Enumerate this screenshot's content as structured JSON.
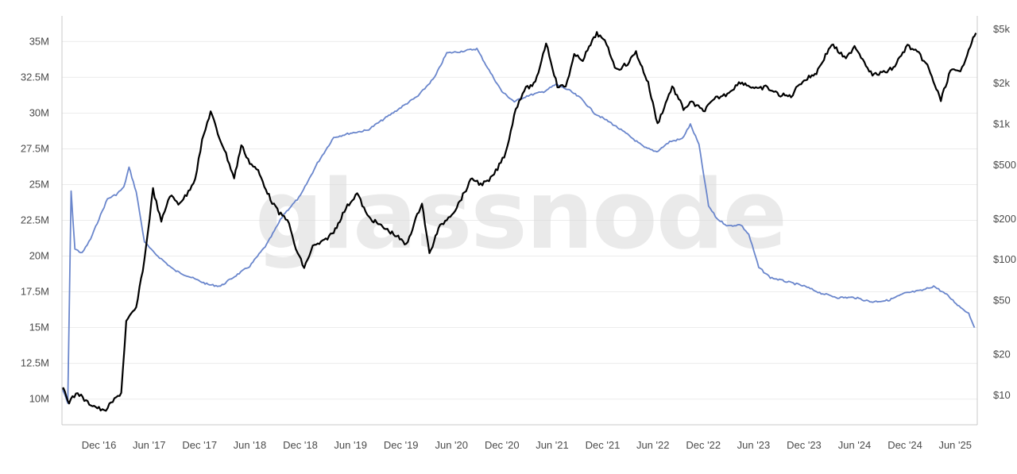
{
  "watermark": "glassnode",
  "colors": {
    "supply_line": "#6a86cc",
    "price_line": "#000000",
    "grid": "#ececec",
    "axis": "#c8c8c8",
    "watermark": "#d9d9d9"
  },
  "chart_data": {
    "type": "line",
    "title": "",
    "xlabel": "",
    "ylabel": "",
    "grid": true,
    "x_ticks": [
      "Dec '16",
      "Jun '17",
      "Dec '17",
      "Jun '18",
      "Dec '18",
      "Jun '19",
      "Dec '19",
      "Jun '20",
      "Dec '20",
      "Jun '21",
      "Dec '21",
      "Jun '22",
      "Dec '22",
      "Jun '23",
      "Dec '23",
      "Jun '24",
      "Dec '24",
      "Jun '25"
    ],
    "y_left_ticks": [
      "10M",
      "12.5M",
      "15M",
      "17.5M",
      "20M",
      "22.5M",
      "25M",
      "27.5M",
      "30M",
      "32.5M",
      "35M"
    ],
    "y_left_range": [
      8.2,
      36.8
    ],
    "y_right_ticks": [
      "$10",
      "$20",
      "$50",
      "$100",
      "$200",
      "$500",
      "$1k",
      "$2k",
      "$5k"
    ],
    "y_right_tick_values": [
      10,
      20,
      50,
      100,
      200,
      500,
      1000,
      2000,
      5000
    ],
    "y_right_scale": "log",
    "x_range": [
      "2016-07-20",
      "2025-08-20"
    ],
    "series": [
      {
        "axis": "left",
        "color": "#6a86cc",
        "points": [
          [
            "2016-07-20",
            10.8
          ],
          [
            "2016-08-10",
            9.7
          ],
          [
            "2016-08-22",
            24.5
          ],
          [
            "2016-09-05",
            20.5
          ],
          [
            "2016-10-01",
            20.2
          ],
          [
            "2016-11-01",
            21.2
          ],
          [
            "2016-12-01",
            22.6
          ],
          [
            "2017-01-01",
            24.0
          ],
          [
            "2017-02-01",
            24.3
          ],
          [
            "2017-03-01",
            24.8
          ],
          [
            "2017-03-20",
            26.2
          ],
          [
            "2017-04-15",
            24.5
          ],
          [
            "2017-05-15",
            21.0
          ],
          [
            "2017-06-15",
            20.3
          ],
          [
            "2017-07-15",
            19.8
          ],
          [
            "2017-09-01",
            19.0
          ],
          [
            "2017-11-01",
            18.5
          ],
          [
            "2018-01-01",
            18.0
          ],
          [
            "2018-02-15",
            17.9
          ],
          [
            "2018-04-01",
            18.5
          ],
          [
            "2018-06-01",
            19.3
          ],
          [
            "2018-08-01",
            20.8
          ],
          [
            "2018-10-01",
            22.9
          ],
          [
            "2018-12-01",
            24.2
          ],
          [
            "2019-02-01",
            26.5
          ],
          [
            "2019-04-01",
            28.3
          ],
          [
            "2019-06-01",
            28.6
          ],
          [
            "2019-08-01",
            28.8
          ],
          [
            "2019-10-01",
            29.6
          ],
          [
            "2019-12-01",
            30.4
          ],
          [
            "2020-02-01",
            31.2
          ],
          [
            "2020-04-01",
            32.5
          ],
          [
            "2020-05-15",
            34.2
          ],
          [
            "2020-07-01",
            34.3
          ],
          [
            "2020-09-01",
            34.5
          ],
          [
            "2020-10-15",
            33.0
          ],
          [
            "2020-12-01",
            31.5
          ],
          [
            "2021-01-15",
            30.8
          ],
          [
            "2021-03-01",
            31.2
          ],
          [
            "2021-05-01",
            31.5
          ],
          [
            "2021-06-15",
            32.0
          ],
          [
            "2021-08-01",
            31.6
          ],
          [
            "2021-09-15",
            31.0
          ],
          [
            "2021-11-01",
            30.0
          ],
          [
            "2022-01-01",
            29.3
          ],
          [
            "2022-03-01",
            28.5
          ],
          [
            "2022-05-01",
            27.6
          ],
          [
            "2022-06-15",
            27.3
          ],
          [
            "2022-08-01",
            28.0
          ],
          [
            "2022-09-15",
            28.2
          ],
          [
            "2022-10-15",
            29.2
          ],
          [
            "2022-11-15",
            27.8
          ],
          [
            "2022-12-20",
            23.5
          ],
          [
            "2023-01-20",
            22.6
          ],
          [
            "2023-03-01",
            22.1
          ],
          [
            "2023-04-15",
            22.2
          ],
          [
            "2023-05-15",
            21.5
          ],
          [
            "2023-06-20",
            19.2
          ],
          [
            "2023-08-01",
            18.5
          ],
          [
            "2023-10-01",
            18.2
          ],
          [
            "2023-12-01",
            17.9
          ],
          [
            "2024-02-01",
            17.4
          ],
          [
            "2024-04-01",
            17.1
          ],
          [
            "2024-06-01",
            17.1
          ],
          [
            "2024-08-01",
            16.8
          ],
          [
            "2024-10-01",
            16.9
          ],
          [
            "2024-12-01",
            17.4
          ],
          [
            "2025-02-01",
            17.6
          ],
          [
            "2025-03-15",
            17.9
          ],
          [
            "2025-05-01",
            17.3
          ],
          [
            "2025-06-15",
            16.5
          ],
          [
            "2025-07-20",
            16.0
          ],
          [
            "2025-08-10",
            15.0
          ]
        ]
      },
      {
        "axis": "right",
        "color": "#000000",
        "points": [
          [
            "2016-07-20",
            11.5
          ],
          [
            "2016-08-15",
            9.0
          ],
          [
            "2016-09-15",
            10.5
          ],
          [
            "2016-10-15",
            9.0
          ],
          [
            "2016-12-01",
            8.0
          ],
          [
            "2016-12-20",
            7.6
          ],
          [
            "2017-01-20",
            9.0
          ],
          [
            "2017-02-20",
            10.5
          ],
          [
            "2017-03-10",
            35.0
          ],
          [
            "2017-04-15",
            44.0
          ],
          [
            "2017-05-15",
            100.0
          ],
          [
            "2017-06-15",
            330.0
          ],
          [
            "2017-07-15",
            190.0
          ],
          [
            "2017-08-15",
            300.0
          ],
          [
            "2017-09-15",
            260.0
          ],
          [
            "2017-10-15",
            300.0
          ],
          [
            "2017-11-15",
            400.0
          ],
          [
            "2017-12-10",
            750.0
          ],
          [
            "2018-01-10",
            1250.0
          ],
          [
            "2018-02-05",
            850.0
          ],
          [
            "2018-03-01",
            650.0
          ],
          [
            "2018-04-05",
            400.0
          ],
          [
            "2018-05-01",
            700.0
          ],
          [
            "2018-06-01",
            520.0
          ],
          [
            "2018-07-01",
            450.0
          ],
          [
            "2018-08-15",
            280.0
          ],
          [
            "2018-09-15",
            220.0
          ],
          [
            "2018-10-15",
            200.0
          ],
          [
            "2018-11-15",
            120.0
          ],
          [
            "2018-12-15",
            87.0
          ],
          [
            "2019-01-15",
            125.0
          ],
          [
            "2019-02-20",
            135.0
          ],
          [
            "2019-04-01",
            160.0
          ],
          [
            "2019-05-15",
            240.0
          ],
          [
            "2019-06-25",
            310.0
          ],
          [
            "2019-08-01",
            210.0
          ],
          [
            "2019-09-15",
            180.0
          ],
          [
            "2019-11-15",
            150.0
          ],
          [
            "2019-12-20",
            128.0
          ],
          [
            "2020-02-15",
            265.0
          ],
          [
            "2020-03-13",
            110.0
          ],
          [
            "2020-04-15",
            170.0
          ],
          [
            "2020-05-15",
            200.0
          ],
          [
            "2020-06-15",
            235.0
          ],
          [
            "2020-08-15",
            400.0
          ],
          [
            "2020-09-15",
            360.0
          ],
          [
            "2020-10-15",
            380.0
          ],
          [
            "2020-11-15",
            470.0
          ],
          [
            "2020-12-15",
            620.0
          ],
          [
            "2021-01-20",
            1300.0
          ],
          [
            "2021-02-20",
            1800.0
          ],
          [
            "2021-04-01",
            2000.0
          ],
          [
            "2021-05-10",
            4000.0
          ],
          [
            "2021-06-20",
            1900.0
          ],
          [
            "2021-07-20",
            1900.0
          ],
          [
            "2021-08-20",
            3200.0
          ],
          [
            "2021-09-20",
            3000.0
          ],
          [
            "2021-11-10",
            4700.0
          ],
          [
            "2021-12-15",
            3900.0
          ],
          [
            "2022-01-20",
            2500.0
          ],
          [
            "2022-03-01",
            2800.0
          ],
          [
            "2022-04-01",
            3400.0
          ],
          [
            "2022-05-15",
            2000.0
          ],
          [
            "2022-06-18",
            1000.0
          ],
          [
            "2022-08-10",
            1900.0
          ],
          [
            "2022-09-20",
            1300.0
          ],
          [
            "2022-10-20",
            1450.0
          ],
          [
            "2022-12-01",
            1250.0
          ],
          [
            "2023-01-15",
            1550.0
          ],
          [
            "2023-02-20",
            1650.0
          ],
          [
            "2023-04-15",
            2050.0
          ],
          [
            "2023-06-15",
            1800.0
          ],
          [
            "2023-07-15",
            1880.0
          ],
          [
            "2023-09-01",
            1650.0
          ],
          [
            "2023-10-15",
            1600.0
          ],
          [
            "2023-11-15",
            2000.0
          ],
          [
            "2024-01-15",
            2400.0
          ],
          [
            "2024-03-10",
            3900.0
          ],
          [
            "2024-05-01",
            3000.0
          ],
          [
            "2024-06-01",
            3800.0
          ],
          [
            "2024-08-05",
            2300.0
          ],
          [
            "2024-09-15",
            2400.0
          ],
          [
            "2024-10-20",
            2600.0
          ],
          [
            "2024-12-10",
            3800.0
          ],
          [
            "2025-01-20",
            3300.0
          ],
          [
            "2025-02-20",
            2700.0
          ],
          [
            "2025-04-10",
            1500.0
          ],
          [
            "2025-05-15",
            2500.0
          ],
          [
            "2025-06-20",
            2400.0
          ],
          [
            "2025-07-20",
            3600.0
          ],
          [
            "2025-08-15",
            4700.0
          ]
        ]
      }
    ]
  }
}
